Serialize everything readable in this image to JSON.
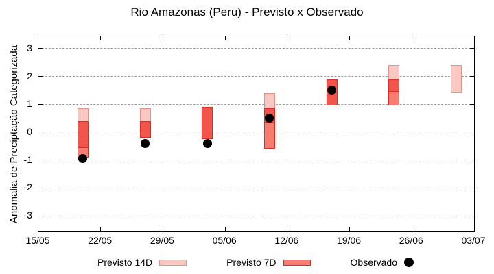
{
  "title": "Rio Amazonas (Peru) - Previsto x Observado",
  "y_axis": {
    "label": "Anomalia de Preciptação Categorizada",
    "ticks": [
      3,
      2,
      1,
      0,
      -1,
      -2,
      -3
    ],
    "range_displayed": [
      -3.54,
      3.44
    ],
    "grid": "horizontal dotted lines at each integer"
  },
  "x_axis": {
    "tick_labels": [
      "15/05",
      "22/05",
      "29/05",
      "05/06",
      "12/06",
      "19/06",
      "26/06",
      "03/07"
    ],
    "span_days": 49,
    "tick_interval_days": 7
  },
  "legend": {
    "items": [
      {
        "label": "Previsto 14D",
        "swatch": "pink-range-box"
      },
      {
        "label": "Previsto 7D",
        "swatch": "red-range-box"
      },
      {
        "label": "Observado",
        "swatch": "black-dot"
      }
    ],
    "position": "bottom-center"
  },
  "colors": {
    "previsto_14d_fill": "#f9c8c2",
    "previsto_14d_border": "#e89287",
    "previsto_7d_fill": "#f87c72",
    "previsto_7d_border": "#e02c20",
    "overlap_fill": "#f2554c",
    "observado": "#000000",
    "gridline": "#999999"
  },
  "chart_data": {
    "type": "bar",
    "variant": "floating range bars (forecast intervals, 7D drawn over 14D) + scatter overlay of observations",
    "title": "Rio Amazonas (Peru) - Previsto x Observado",
    "xlabel": "",
    "ylabel": "Anomalia de Preciptação Categorizada",
    "ylim": [
      -3.5,
      3.5
    ],
    "x_range": [
      "15/05",
      "03/07"
    ],
    "points": [
      {
        "date": "20/05",
        "day_offset": 5,
        "previsto_14d": [
          -0.55,
          0.85
        ],
        "previsto_7d": [
          -0.9,
          0.4
        ],
        "observado": -0.95
      },
      {
        "date": "27/05",
        "day_offset": 12,
        "previsto_14d": [
          -0.2,
          0.85
        ],
        "previsto_7d": [
          -0.2,
          0.4
        ],
        "observado": -0.4
      },
      {
        "date": "03/06",
        "day_offset": 19,
        "previsto_14d": [
          -0.25,
          0.9
        ],
        "previsto_7d": [
          -0.25,
          0.9
        ],
        "observado": -0.4
      },
      {
        "date": "10/06",
        "day_offset": 26,
        "previsto_14d": [
          0.35,
          1.4
        ],
        "previsto_7d": [
          -0.6,
          0.85
        ],
        "observado": 0.5
      },
      {
        "date": "17/06",
        "day_offset": 33,
        "previsto_14d": [
          0.95,
          1.9
        ],
        "previsto_7d": [
          0.95,
          1.9
        ],
        "observado": 1.5
      },
      {
        "date": "24/06",
        "day_offset": 40,
        "previsto_14d": [
          1.45,
          2.4
        ],
        "previsto_7d": [
          0.95,
          1.9
        ],
        "observado": null
      },
      {
        "date": "01/07",
        "day_offset": 47,
        "previsto_14d": [
          1.4,
          2.4
        ],
        "previsto_7d": null,
        "observado": null
      }
    ]
  }
}
